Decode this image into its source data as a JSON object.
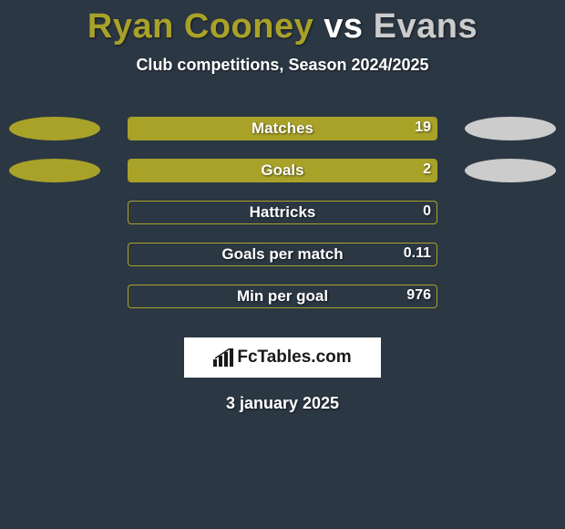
{
  "title": {
    "player1": "Ryan Cooney",
    "vs": "vs",
    "player2": "Evans",
    "color1": "#a9a229",
    "color_vs": "#ffffff",
    "color2": "#cccccc"
  },
  "subtitle": "Club competitions, Season 2024/2025",
  "colors": {
    "background": "#2b3743",
    "player1": "#a9a229",
    "player2": "#cccccc",
    "bar_border": "#a9a229",
    "bar_fill_left": "#a9a229",
    "bar_fill_right": "#cccccc"
  },
  "stats": [
    {
      "label": "Matches",
      "value_right": "19",
      "left_pct": 0,
      "right_pct": 100,
      "show_left_ellipse": true,
      "show_right_ellipse": true
    },
    {
      "label": "Goals",
      "value_right": "2",
      "left_pct": 0,
      "right_pct": 100,
      "show_left_ellipse": true,
      "show_right_ellipse": true
    },
    {
      "label": "Hattricks",
      "value_right": "0",
      "left_pct": 0,
      "right_pct": 0,
      "show_left_ellipse": false,
      "show_right_ellipse": false
    },
    {
      "label": "Goals per match",
      "value_right": "0.11",
      "left_pct": 0,
      "right_pct": 0,
      "show_left_ellipse": false,
      "show_right_ellipse": false
    },
    {
      "label": "Min per goal",
      "value_right": "976",
      "left_pct": 0,
      "right_pct": 0,
      "show_left_ellipse": false,
      "show_right_ellipse": false
    }
  ],
  "logo_text": "FcTables.com",
  "date": "3 january 2025"
}
